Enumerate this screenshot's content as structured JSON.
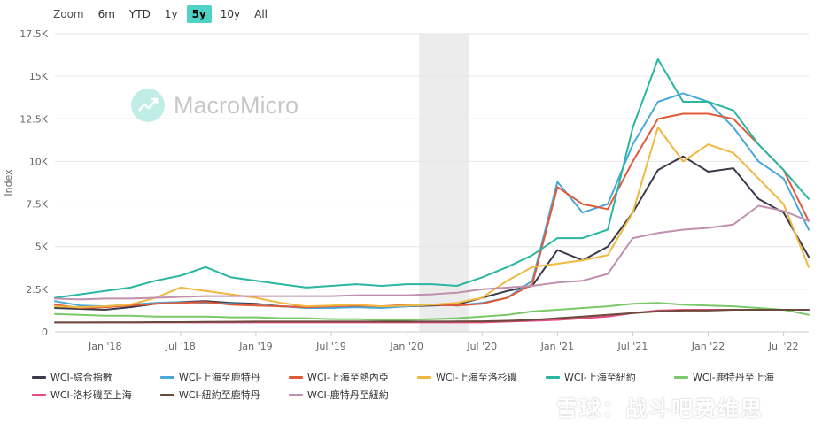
{
  "zoom": {
    "label": "Zoom",
    "buttons": [
      "6m",
      "YTD",
      "1y",
      "5y",
      "10y",
      "All"
    ],
    "active": "5y"
  },
  "watermark": {
    "text": "MacroMicro",
    "icon": "chart-trend-icon"
  },
  "xueqiu": {
    "text": "雪球：战斗吧费维思"
  },
  "chart_data": {
    "type": "line",
    "title": "",
    "xlabel": "",
    "ylabel": "Index",
    "ylim": [
      0,
      17500
    ],
    "yticks": [
      0,
      2500,
      5000,
      7500,
      10000,
      12500,
      15000,
      17500
    ],
    "ytick_labels": [
      "0",
      "2.5K",
      "5K",
      "7.5K",
      "10K",
      "12.5K",
      "15K",
      "17.5K"
    ],
    "x_range": [
      "2017-09",
      "2022-09"
    ],
    "xtick_labels": [
      "Jan '18",
      "Jul '18",
      "Jan '19",
      "Jul '19",
      "Jan '20",
      "Jul '20",
      "Jan '21",
      "Jul '21",
      "Jan '22",
      "Jul '22"
    ],
    "xtick_dates": [
      "2018-01",
      "2018-07",
      "2019-01",
      "2019-07",
      "2020-01",
      "2020-07",
      "2021-01",
      "2021-07",
      "2022-01",
      "2022-07"
    ],
    "shaded_period": [
      "2020-02",
      "2020-06"
    ],
    "grid": true,
    "legend_position": "bottom",
    "x": [
      "2017-09",
      "2017-11",
      "2018-01",
      "2018-03",
      "2018-05",
      "2018-07",
      "2018-09",
      "2018-11",
      "2019-01",
      "2019-03",
      "2019-05",
      "2019-07",
      "2019-09",
      "2019-11",
      "2020-01",
      "2020-03",
      "2020-05",
      "2020-07",
      "2020-09",
      "2020-11",
      "2021-01",
      "2021-03",
      "2021-05",
      "2021-07",
      "2021-09",
      "2021-11",
      "2022-01",
      "2022-03",
      "2022-05",
      "2022-07",
      "2022-09"
    ],
    "series": [
      {
        "name": "WCI-綜合指數",
        "color": "#3a3a4a",
        "values": [
          1400,
          1350,
          1300,
          1450,
          1650,
          1750,
          1800,
          1700,
          1650,
          1500,
          1450,
          1500,
          1500,
          1450,
          1500,
          1550,
          1600,
          2000,
          2400,
          2700,
          4800,
          4200,
          5000,
          7000,
          9500,
          10300,
          9400,
          9600,
          7800,
          7000,
          4400
        ]
      },
      {
        "name": "WCI-上海至鹿特丹",
        "color": "#4aa8d8",
        "values": [
          1800,
          1550,
          1500,
          1600,
          1700,
          1750,
          1700,
          1650,
          1600,
          1500,
          1400,
          1400,
          1450,
          1400,
          1500,
          1600,
          1550,
          1700,
          2000,
          3000,
          8800,
          7000,
          7500,
          11000,
          13500,
          14000,
          13500,
          12000,
          10000,
          9000,
          6000
        ]
      },
      {
        "name": "WCI-上海至熱內亞",
        "color": "#e05a3a",
        "values": [
          1600,
          1400,
          1450,
          1550,
          1650,
          1700,
          1750,
          1600,
          1550,
          1500,
          1450,
          1500,
          1550,
          1500,
          1600,
          1600,
          1550,
          1650,
          2000,
          2800,
          8500,
          7500,
          7200,
          10000,
          12500,
          12800,
          12800,
          12500,
          11000,
          9500,
          6500
        ]
      },
      {
        "name": "WCI-上海至洛杉磯",
        "color": "#f0b840",
        "values": [
          1500,
          1450,
          1500,
          1600,
          2000,
          2600,
          2400,
          2200,
          2000,
          1700,
          1500,
          1550,
          1600,
          1500,
          1550,
          1600,
          1700,
          2000,
          3000,
          3800,
          4000,
          4200,
          4500,
          7000,
          12000,
          10000,
          11000,
          10500,
          9000,
          7500,
          3800
        ]
      },
      {
        "name": "WCI-上海至紐約",
        "color": "#2ab6a0",
        "values": [
          2000,
          2200,
          2400,
          2600,
          3000,
          3300,
          3800,
          3200,
          3000,
          2800,
          2600,
          2700,
          2800,
          2700,
          2800,
          2800,
          2700,
          3200,
          3800,
          4500,
          5500,
          5500,
          6000,
          12000,
          16000,
          13500,
          13500,
          13000,
          11000,
          9500,
          7800
        ]
      },
      {
        "name": "WCI-鹿特丹至上海",
        "color": "#7ac86a",
        "values": [
          1050,
          1000,
          950,
          950,
          900,
          900,
          900,
          850,
          850,
          800,
          800,
          750,
          750,
          700,
          700,
          750,
          800,
          900,
          1000,
          1200,
          1300,
          1400,
          1500,
          1650,
          1700,
          1600,
          1550,
          1500,
          1400,
          1300,
          1000
        ]
      },
      {
        "name": "WCI-洛杉磯至上海",
        "color": "#e84a80",
        "values": [
          550,
          550,
          550,
          550,
          550,
          550,
          550,
          550,
          550,
          550,
          550,
          550,
          550,
          550,
          550,
          550,
          550,
          550,
          600,
          650,
          700,
          800,
          900,
          1100,
          1250,
          1300,
          1300,
          1300,
          1300,
          1300,
          1300
        ]
      },
      {
        "name": "WCI-紐約至鹿特丹",
        "color": "#6a4a3a",
        "values": [
          550,
          550,
          560,
          560,
          570,
          570,
          580,
          590,
          600,
          600,
          600,
          600,
          600,
          600,
          600,
          600,
          610,
          620,
          650,
          700,
          800,
          900,
          1000,
          1100,
          1200,
          1250,
          1250,
          1300,
          1300,
          1300,
          1300
        ]
      },
      {
        "name": "WCI-鹿特丹至紐約",
        "color": "#c090b0",
        "values": [
          1950,
          1900,
          1950,
          1950,
          2000,
          2050,
          2100,
          2100,
          2100,
          2100,
          2100,
          2100,
          2150,
          2150,
          2150,
          2200,
          2300,
          2500,
          2600,
          2700,
          2900,
          3000,
          3400,
          5500,
          5800,
          6000,
          6100,
          6300,
          7400,
          7100,
          6500
        ]
      }
    ]
  }
}
